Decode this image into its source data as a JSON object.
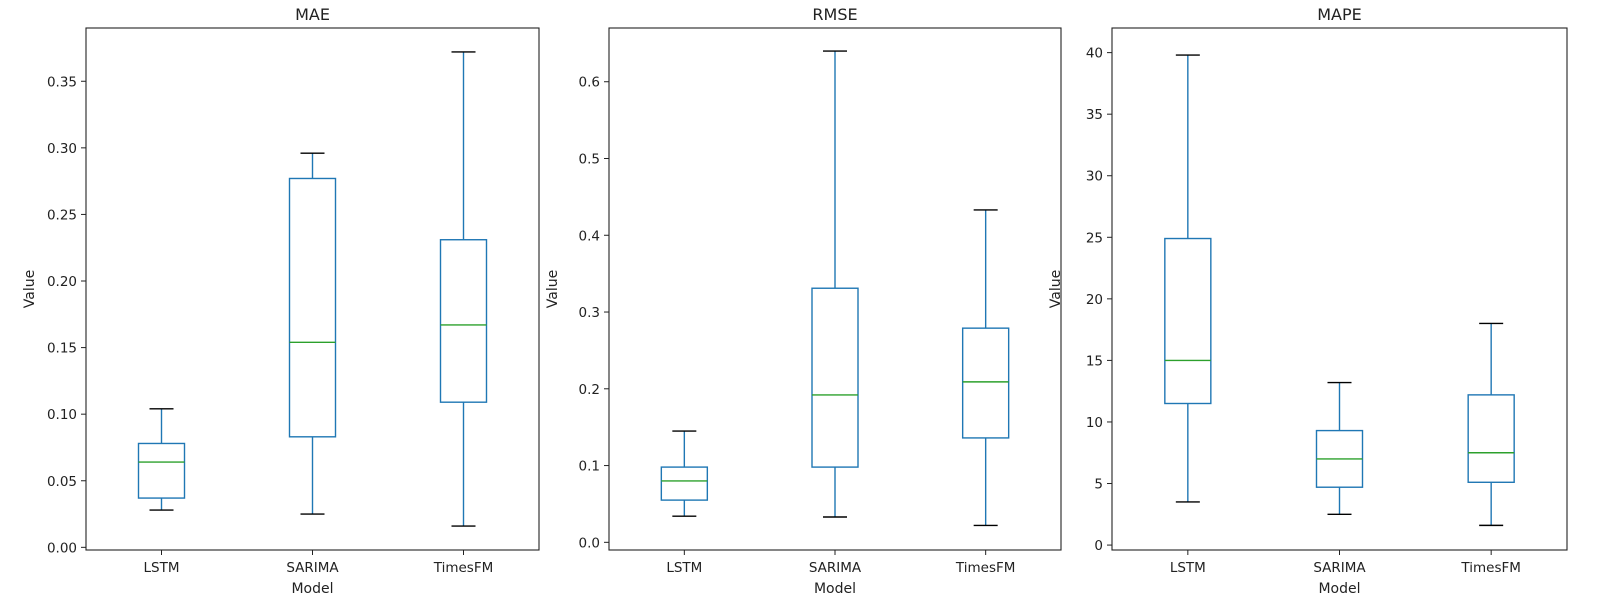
{
  "chart_data": [
    {
      "type": "box",
      "title": "MAE",
      "xlabel": "Model",
      "ylabel": "Value",
      "categories": [
        "LSTM",
        "SARIMA",
        "TimesFM"
      ],
      "ylim": [
        -0.002,
        0.39
      ],
      "yticks": [
        0.0,
        0.05,
        0.1,
        0.15,
        0.2,
        0.25,
        0.3,
        0.35
      ],
      "ytick_labels": [
        "0.00",
        "0.05",
        "0.10",
        "0.15",
        "0.20",
        "0.25",
        "0.30",
        "0.35"
      ],
      "boxes": [
        {
          "name": "LSTM",
          "whislo": 0.028,
          "q1": 0.037,
          "med": 0.064,
          "q3": 0.078,
          "whishi": 0.104
        },
        {
          "name": "SARIMA",
          "whislo": 0.025,
          "q1": 0.083,
          "med": 0.154,
          "q3": 0.277,
          "whishi": 0.296
        },
        {
          "name": "TimesFM",
          "whislo": 0.016,
          "q1": 0.109,
          "med": 0.167,
          "q3": 0.231,
          "whishi": 0.372
        }
      ]
    },
    {
      "type": "box",
      "title": "RMSE",
      "xlabel": "Model",
      "ylabel": "Value",
      "categories": [
        "LSTM",
        "SARIMA",
        "TimesFM"
      ],
      "ylim": [
        -0.01,
        0.67
      ],
      "yticks": [
        0.0,
        0.1,
        0.2,
        0.3,
        0.4,
        0.5,
        0.6
      ],
      "ytick_labels": [
        "0.0",
        "0.1",
        "0.2",
        "0.3",
        "0.4",
        "0.5",
        "0.6"
      ],
      "boxes": [
        {
          "name": "LSTM",
          "whislo": 0.034,
          "q1": 0.055,
          "med": 0.08,
          "q3": 0.098,
          "whishi": 0.145
        },
        {
          "name": "SARIMA",
          "whislo": 0.033,
          "q1": 0.098,
          "med": 0.192,
          "q3": 0.331,
          "whishi": 0.64
        },
        {
          "name": "TimesFM",
          "whislo": 0.022,
          "q1": 0.136,
          "med": 0.209,
          "q3": 0.279,
          "whishi": 0.433
        }
      ]
    },
    {
      "type": "box",
      "title": "MAPE",
      "xlabel": "Model",
      "ylabel": "Value",
      "categories": [
        "LSTM",
        "SARIMA",
        "TimesFM"
      ],
      "ylim": [
        -0.4,
        42
      ],
      "yticks": [
        0,
        5,
        10,
        15,
        20,
        25,
        30,
        35,
        40
      ],
      "ytick_labels": [
        "0",
        "5",
        "10",
        "15",
        "20",
        "25",
        "30",
        "35",
        "40"
      ],
      "boxes": [
        {
          "name": "LSTM",
          "whislo": 3.5,
          "q1": 11.5,
          "med": 15.0,
          "q3": 24.9,
          "whishi": 39.8
        },
        {
          "name": "SARIMA",
          "whislo": 2.5,
          "q1": 4.7,
          "med": 7.0,
          "q3": 9.3,
          "whishi": 13.2
        },
        {
          "name": "TimesFM",
          "whislo": 1.6,
          "q1": 5.1,
          "med": 7.5,
          "q3": 12.2,
          "whishi": 18.0
        }
      ]
    }
  ],
  "colors": {
    "box": "#1f77b4",
    "median": "#2ca02c",
    "cap": "#000000",
    "axis": "#222222"
  }
}
